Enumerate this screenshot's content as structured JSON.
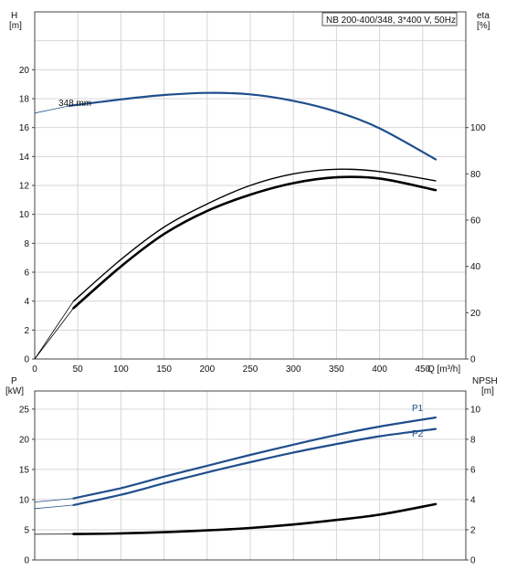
{
  "chart_data": [
    {
      "id": "top",
      "type": "line",
      "title": "NB 200-400/348, 3*400 V, 50Hz",
      "xlabel": "Q [m³/h]",
      "x_ticks": [
        0,
        50,
        100,
        150,
        200,
        250,
        300,
        350,
        400,
        450
      ],
      "xlim": [
        0,
        500
      ],
      "y_left": {
        "label_line1": "H",
        "label_line2": "[m]",
        "range": [
          0,
          24
        ],
        "ticks": [
          0,
          2,
          4,
          6,
          8,
          10,
          12,
          14,
          16,
          18,
          20
        ]
      },
      "y_right": {
        "label_line1": "eta",
        "label_line2": "[%]",
        "range": [
          0,
          150
        ],
        "ticks": [
          0,
          20,
          40,
          60,
          80,
          100
        ]
      },
      "grid": true,
      "series": [
        {
          "name": "348 mm",
          "axis": "left",
          "color": "#1f4e8c",
          "points": [
            [
              0,
              17.0
            ],
            [
              40,
              17.5
            ],
            [
              100,
              17.95
            ],
            [
              150,
              18.25
            ],
            [
              200,
              18.4
            ],
            [
              250,
              18.3
            ],
            [
              300,
              17.85
            ],
            [
              350,
              17.1
            ],
            [
              400,
              15.95
            ],
            [
              465,
              13.8
            ]
          ],
          "valid_from": 45
        },
        {
          "name": "",
          "axis": "right",
          "color": "#000000",
          "points": [
            [
              0,
              0
            ],
            [
              45,
              25
            ],
            [
              100,
              43
            ],
            [
              150,
              57
            ],
            [
              200,
              67
            ],
            [
              250,
              75
            ],
            [
              300,
              80
            ],
            [
              350,
              82
            ],
            [
              400,
              81
            ],
            [
              465,
              77
            ]
          ],
          "valid_from": 45
        },
        {
          "name": "",
          "axis": "right",
          "color": "#000000",
          "points": [
            [
              0,
              0
            ],
            [
              45,
              22
            ],
            [
              100,
              40
            ],
            [
              150,
              54
            ],
            [
              200,
              64
            ],
            [
              250,
              71
            ],
            [
              300,
              76
            ],
            [
              350,
              78.5
            ],
            [
              400,
              78
            ],
            [
              465,
              73
            ]
          ],
          "valid_from": 45
        }
      ]
    },
    {
      "id": "bottom",
      "type": "line",
      "xlim": [
        0,
        500
      ],
      "x_ticks": [
        0,
        50,
        100,
        150,
        200,
        250,
        300,
        350,
        400,
        450
      ],
      "y_left": {
        "label_line1": "P",
        "label_line2": "[kW]",
        "range": [
          0,
          28
        ],
        "ticks": [
          0,
          5,
          10,
          15,
          20,
          25
        ]
      },
      "y_right": {
        "label_line1": "NPSH",
        "label_line2": "[m]",
        "range": [
          0,
          11.2
        ],
        "ticks": [
          0,
          2,
          4,
          6,
          8,
          10
        ]
      },
      "grid": true,
      "series": [
        {
          "name": "P1",
          "axis": "left",
          "color": "#1f4e8c",
          "points": [
            [
              0,
              9.6
            ],
            [
              45,
              10.2
            ],
            [
              100,
              11.9
            ],
            [
              150,
              13.8
            ],
            [
              200,
              15.6
            ],
            [
              250,
              17.4
            ],
            [
              300,
              19.1
            ],
            [
              350,
              20.7
            ],
            [
              400,
              22.1
            ],
            [
              465,
              23.6
            ]
          ],
          "valid_from": 45
        },
        {
          "name": "P2",
          "axis": "left",
          "color": "#1f4e8c",
          "points": [
            [
              0,
              8.5
            ],
            [
              45,
              9.1
            ],
            [
              100,
              10.8
            ],
            [
              150,
              12.7
            ],
            [
              200,
              14.5
            ],
            [
              250,
              16.2
            ],
            [
              300,
              17.8
            ],
            [
              350,
              19.2
            ],
            [
              400,
              20.5
            ],
            [
              465,
              21.7
            ]
          ],
          "valid_from": 45
        },
        {
          "name": "",
          "axis": "right",
          "color": "#000000",
          "points": [
            [
              0,
              1.7
            ],
            [
              45,
              1.72
            ],
            [
              100,
              1.76
            ],
            [
              150,
              1.84
            ],
            [
              200,
              1.96
            ],
            [
              250,
              2.12
            ],
            [
              300,
              2.35
            ],
            [
              350,
              2.65
            ],
            [
              400,
              3.0
            ],
            [
              465,
              3.7
            ]
          ],
          "valid_from": 45
        }
      ]
    }
  ]
}
